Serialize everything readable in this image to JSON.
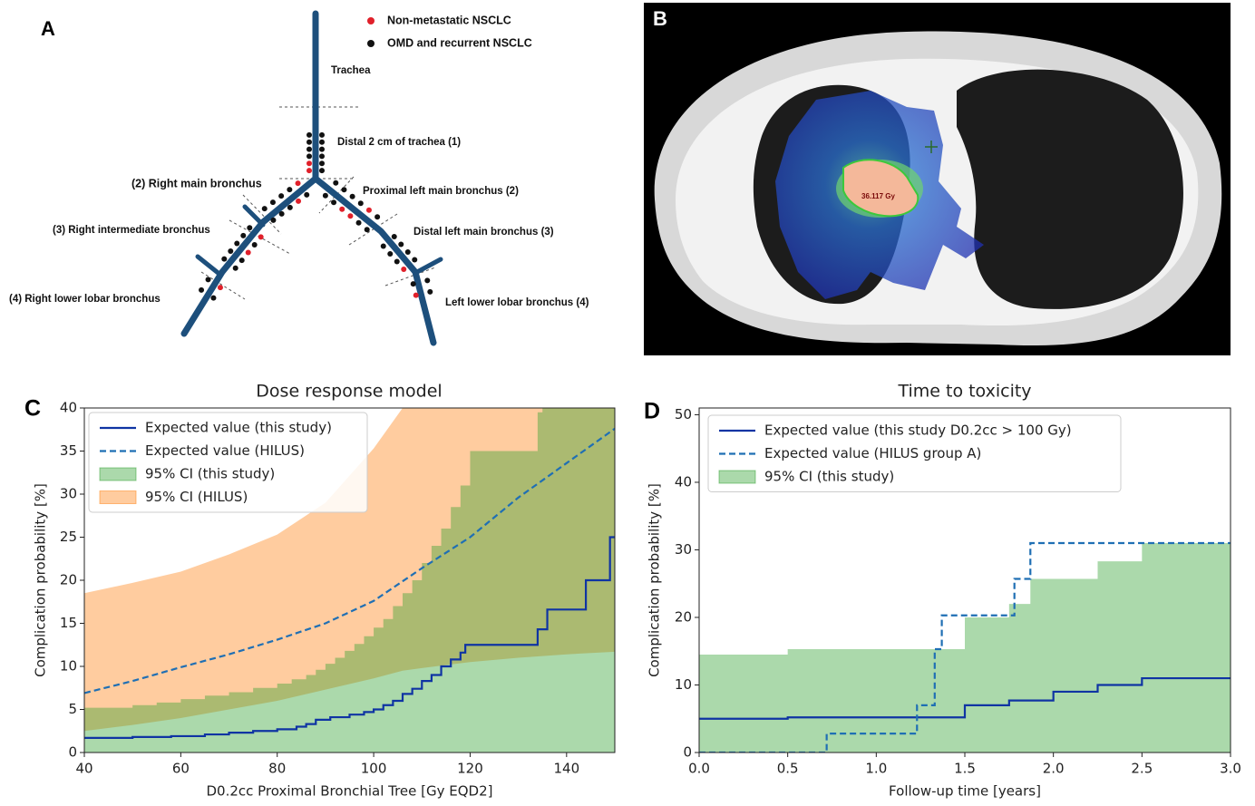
{
  "panel_a": {
    "label": "A",
    "legend": [
      "Non-metastatic NSCLC",
      "OMD and recurrent NSCLC"
    ],
    "labels": [
      "Trachea",
      "Distal 2 cm of trachea (1)",
      "(2) Right main bronchus",
      "Proximal left main bronchus (2)",
      "(3) Right intermediate  bronchus",
      "Distal left main bronchus (3)",
      "(4) Right lower lobar bronchus",
      "Left lower lobar  bronchus (4)"
    ]
  },
  "panel_b": {
    "label": "B",
    "dose_label": "36.117 Gy"
  },
  "chart_data": [
    {
      "type": "line",
      "panel_label": "C",
      "title": "Dose response model",
      "xlabel": "D0.2cc Proximal Bronchial Tree [Gy EQD2]",
      "ylabel": "Complication probability [%]",
      "xlim": [
        40,
        150
      ],
      "xticks": [
        40,
        60,
        80,
        100,
        120,
        140
      ],
      "ylim": [
        0,
        40
      ],
      "yticks": [
        0,
        5,
        10,
        15,
        20,
        25,
        30,
        35,
        40
      ],
      "legend": "upper left",
      "series": [
        {
          "name": "Expected value (this study)",
          "kind": "line",
          "style": "solid",
          "step": true,
          "color": "#0f34a3",
          "x": [
            40,
            50,
            58,
            65,
            70,
            75,
            80,
            84,
            86,
            88,
            91,
            95,
            98,
            100,
            102,
            104,
            106,
            108,
            110,
            112,
            114,
            116,
            118,
            119,
            134,
            136,
            140,
            144,
            148,
            149,
            150
          ],
          "values": [
            1.7,
            1.8,
            1.9,
            2.1,
            2.3,
            2.5,
            2.7,
            3.0,
            3.3,
            3.8,
            4.1,
            4.4,
            4.7,
            5.0,
            5.5,
            6.0,
            6.8,
            7.4,
            8.3,
            9.0,
            10.0,
            10.8,
            11.6,
            12.5,
            14.3,
            16.6,
            16.6,
            20,
            20,
            25,
            25
          ]
        },
        {
          "name": "Expected value (HILUS)",
          "kind": "line",
          "style": "dashed",
          "step": false,
          "color": "#1f6fb4",
          "x": [
            40,
            50,
            60,
            70,
            80,
            90,
            100,
            110,
            120,
            130,
            140,
            150
          ],
          "values": [
            6.9,
            8.3,
            9.9,
            11.4,
            13.1,
            15.0,
            17.6,
            21.4,
            25.0,
            29.6,
            33.6,
            37.6
          ]
        },
        {
          "name": "95% CI (this study)",
          "kind": "band",
          "step": true,
          "color": "#2ca02c",
          "x": [
            40,
            50,
            55,
            60,
            65,
            70,
            75,
            80,
            83,
            86,
            88,
            90,
            92,
            94,
            96,
            98,
            100,
            102,
            104,
            106,
            108,
            110,
            112,
            114,
            116,
            118,
            120,
            134,
            135,
            150
          ],
          "lower": [
            0,
            0,
            0,
            0,
            0,
            0,
            0,
            0,
            0,
            0,
            0,
            0,
            0,
            0,
            0,
            0,
            0,
            0,
            0,
            0,
            0,
            0,
            0,
            0,
            0,
            0,
            0,
            0,
            0,
            0
          ],
          "upper": [
            5.2,
            5.5,
            5.8,
            6.2,
            6.6,
            7.0,
            7.5,
            8.0,
            8.5,
            9.0,
            9.6,
            10.3,
            11,
            11.8,
            12.6,
            13.5,
            14.5,
            15.5,
            17,
            18.5,
            20,
            22,
            24,
            26,
            28.5,
            31,
            35,
            39.5,
            40,
            40
          ]
        },
        {
          "name": "95% CI (HILUS)",
          "kind": "band",
          "step": false,
          "color": "#ff7f0e",
          "x": [
            40,
            50,
            60,
            70,
            80,
            90,
            100,
            106,
            110,
            120,
            130,
            140,
            150
          ],
          "lower": [
            2.5,
            3.2,
            4.0,
            5.0,
            6.0,
            7.3,
            8.6,
            9.5,
            9.8,
            10.5,
            11.0,
            11.4,
            11.7
          ],
          "upper": [
            18.5,
            19.7,
            21,
            23,
            25.3,
            29,
            35.3,
            40,
            40,
            40,
            40,
            40,
            40
          ]
        }
      ]
    },
    {
      "type": "line",
      "panel_label": "D",
      "title": "Time to toxicity",
      "xlabel": "Follow-up time [years]",
      "ylabel": "Complication probability [%]",
      "xlim": [
        0,
        3
      ],
      "xticks": [
        {
          "value": 0,
          "label": "0.0"
        },
        0.5,
        {
          "value": 1,
          "label": "1.0"
        },
        1.5,
        {
          "value": 2,
          "label": "2.0"
        },
        2.5,
        {
          "value": 3,
          "label": "3.0"
        }
      ],
      "ylim": [
        0,
        51
      ],
      "yticks": [
        0,
        10,
        20,
        30,
        40,
        50
      ],
      "legend": "upper left",
      "series": [
        {
          "name": "Expected value (this study D0.2cc > 100 Gy)",
          "kind": "line",
          "style": "solid",
          "step": true,
          "color": "#0f34a3",
          "x": [
            0,
            0.5,
            1.5,
            1.75,
            2.0,
            2.25,
            2.5,
            3.0
          ],
          "values": [
            5,
            5.2,
            7,
            7.7,
            9,
            10,
            11,
            11
          ]
        },
        {
          "name": "Expected value  (HILUS group A)",
          "kind": "line",
          "style": "dashed",
          "step": true,
          "color": "#1f6fb4",
          "x": [
            0,
            0.72,
            1.23,
            1.33,
            1.37,
            1.78,
            1.87,
            3.0
          ],
          "values": [
            0,
            2.8,
            7,
            15.3,
            20.3,
            25.7,
            31,
            31
          ]
        },
        {
          "name": "95% CI (this study)",
          "kind": "band",
          "step": true,
          "color": "#2ca02c",
          "x": [
            0,
            0.5,
            1.5,
            1.75,
            1.87,
            2.25,
            2.5,
            3.0
          ],
          "lower": [
            0,
            0,
            0,
            0,
            0,
            0,
            0,
            0
          ],
          "upper": [
            14.5,
            15.3,
            20,
            22,
            25.7,
            28.3,
            31,
            31
          ]
        }
      ]
    }
  ]
}
